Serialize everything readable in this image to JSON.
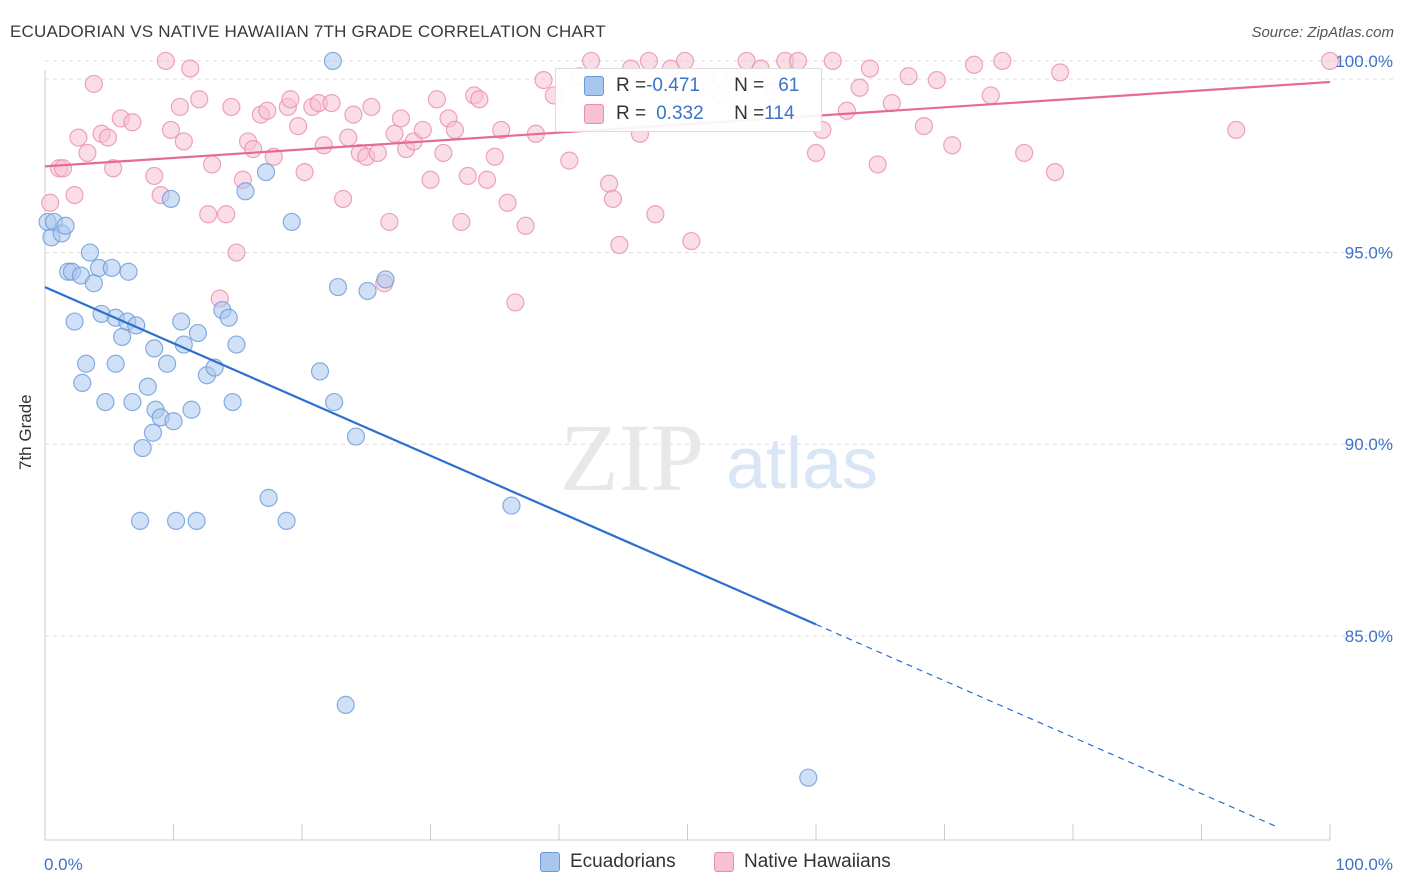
{
  "title": "ECUADORIAN VS NATIVE HAWAIIAN 7TH GRADE CORRELATION CHART",
  "source": "Source: ZipAtlas.com",
  "watermark": {
    "zip": "ZIP",
    "atlas": "atlas"
  },
  "colors": {
    "blue_fill": "#a9c6ee",
    "blue_stroke": "#6b9bd8",
    "blue_line": "#2b6fd0",
    "pink_fill": "#f6c1d2",
    "pink_stroke": "#e98fae",
    "pink_line": "#e56b94",
    "grid": "#dcdcdc",
    "tick_label": "#3b73c8"
  },
  "stats_legend": {
    "rows": [
      {
        "r_label": "R = ",
        "r_value": "-0.471",
        "n_label": "N = ",
        "n_value": "61"
      },
      {
        "r_label": "R = ",
        "r_value": "0.332",
        "n_label": "N = ",
        "n_value": "114"
      }
    ]
  },
  "legend": {
    "ecuadorians": "Ecuadorians",
    "native_hawaiians": "Native Hawaiians"
  },
  "chart_data": {
    "type": "scatter",
    "title": "ECUADORIAN VS NATIVE HAWAIIAN 7TH GRADE CORRELATION CHART",
    "xlabel": "",
    "ylabel": "7th Grade",
    "xlim": [
      0,
      100
    ],
    "ylim": [
      79.5,
      100.8
    ],
    "x_tick_labels": [
      "0.0%",
      "100.0%"
    ],
    "y_ticks": [
      85,
      90,
      95,
      100
    ],
    "y_tick_labels": [
      "85.0%",
      "90.0%",
      "95.0%",
      "100.0%"
    ],
    "grid": true,
    "legend_position": "bottom",
    "series": [
      {
        "name": "Ecuadorians",
        "color": "#a9c6ee",
        "trend": {
          "x0": 0,
          "y0": 94.1,
          "x1": 60,
          "y1": 85.3,
          "dashed_to_x": 96,
          "dashed_to_y": 80.0
        },
        "points": [
          [
            0.2,
            95.8
          ],
          [
            0.5,
            95.4
          ],
          [
            0.7,
            95.8
          ],
          [
            1.3,
            95.5
          ],
          [
            1.6,
            95.7
          ],
          [
            3.5,
            95.0
          ],
          [
            1.8,
            94.5
          ],
          [
            2.1,
            94.5
          ],
          [
            2.8,
            94.4
          ],
          [
            3.8,
            94.2
          ],
          [
            4.2,
            94.6
          ],
          [
            5.2,
            94.6
          ],
          [
            6.5,
            94.5
          ],
          [
            9.8,
            96.4
          ],
          [
            15.6,
            96.6
          ],
          [
            17.2,
            97.1
          ],
          [
            19.2,
            95.8
          ],
          [
            22.4,
            100.0
          ],
          [
            22.8,
            94.1
          ],
          [
            25.1,
            94.0
          ],
          [
            26.5,
            94.3
          ],
          [
            2.3,
            93.2
          ],
          [
            4.4,
            93.4
          ],
          [
            5.5,
            93.3
          ],
          [
            6.0,
            92.8
          ],
          [
            6.4,
            93.2
          ],
          [
            7.1,
            93.1
          ],
          [
            8.5,
            92.5
          ],
          [
            10.6,
            93.2
          ],
          [
            10.8,
            92.6
          ],
          [
            11.9,
            92.9
          ],
          [
            13.8,
            93.5
          ],
          [
            14.3,
            93.3
          ],
          [
            14.9,
            92.6
          ],
          [
            2.9,
            91.6
          ],
          [
            3.2,
            92.1
          ],
          [
            5.5,
            92.1
          ],
          [
            9.5,
            92.1
          ],
          [
            8.0,
            91.5
          ],
          [
            12.6,
            91.8
          ],
          [
            13.2,
            92.0
          ],
          [
            21.4,
            91.9
          ],
          [
            4.7,
            91.1
          ],
          [
            6.8,
            91.1
          ],
          [
            8.6,
            90.9
          ],
          [
            9.0,
            90.7
          ],
          [
            10.0,
            90.6
          ],
          [
            11.4,
            90.9
          ],
          [
            14.6,
            91.1
          ],
          [
            22.5,
            91.1
          ],
          [
            8.4,
            90.3
          ],
          [
            7.6,
            89.9
          ],
          [
            24.2,
            90.2
          ],
          [
            17.4,
            88.6
          ],
          [
            36.3,
            88.4
          ],
          [
            7.4,
            88.0
          ],
          [
            10.2,
            88.0
          ],
          [
            11.8,
            88.0
          ],
          [
            18.8,
            88.0
          ],
          [
            23.4,
            83.2
          ],
          [
            59.4,
            81.3
          ]
        ]
      },
      {
        "name": "Native Hawaiians",
        "color": "#f6c1d2",
        "trend": {
          "x0": 0,
          "y0": 97.25,
          "x1": 100,
          "y1": 99.45
        },
        "points": [
          [
            0.4,
            96.3
          ],
          [
            1.1,
            97.2
          ],
          [
            1.4,
            97.2
          ],
          [
            2.3,
            96.5
          ],
          [
            2.6,
            98.0
          ],
          [
            3.3,
            97.6
          ],
          [
            3.8,
            99.4
          ],
          [
            4.4,
            98.1
          ],
          [
            4.9,
            98.0
          ],
          [
            5.3,
            97.2
          ],
          [
            5.9,
            98.5
          ],
          [
            6.8,
            98.4
          ],
          [
            8.5,
            97.0
          ],
          [
            9.0,
            96.5
          ],
          [
            9.4,
            100.0
          ],
          [
            9.8,
            98.2
          ],
          [
            10.5,
            98.8
          ],
          [
            10.8,
            97.9
          ],
          [
            11.3,
            99.8
          ],
          [
            12.0,
            99.0
          ],
          [
            12.7,
            96.0
          ],
          [
            13.0,
            97.3
          ],
          [
            13.6,
            93.8
          ],
          [
            14.1,
            96.0
          ],
          [
            14.5,
            98.8
          ],
          [
            14.9,
            95.0
          ],
          [
            15.4,
            96.9
          ],
          [
            15.8,
            97.9
          ],
          [
            16.2,
            97.7
          ],
          [
            16.8,
            98.6
          ],
          [
            17.3,
            98.7
          ],
          [
            17.8,
            97.5
          ],
          [
            18.9,
            98.8
          ],
          [
            19.1,
            99.0
          ],
          [
            19.7,
            98.3
          ],
          [
            20.2,
            97.1
          ],
          [
            20.8,
            98.8
          ],
          [
            21.3,
            98.9
          ],
          [
            21.7,
            97.8
          ],
          [
            22.3,
            98.9
          ],
          [
            23.2,
            96.4
          ],
          [
            23.6,
            98.0
          ],
          [
            24.0,
            98.6
          ],
          [
            24.5,
            97.6
          ],
          [
            25.0,
            97.5
          ],
          [
            25.4,
            98.8
          ],
          [
            25.9,
            97.6
          ],
          [
            26.4,
            94.2
          ],
          [
            26.8,
            95.8
          ],
          [
            27.2,
            98.1
          ],
          [
            27.7,
            98.5
          ],
          [
            28.1,
            97.7
          ],
          [
            28.7,
            97.9
          ],
          [
            29.4,
            98.2
          ],
          [
            30.0,
            96.9
          ],
          [
            30.5,
            99.0
          ],
          [
            31.0,
            97.6
          ],
          [
            31.4,
            98.5
          ],
          [
            31.9,
            98.2
          ],
          [
            32.4,
            95.8
          ],
          [
            32.9,
            97.0
          ],
          [
            33.4,
            99.1
          ],
          [
            33.8,
            99.0
          ],
          [
            34.4,
            96.9
          ],
          [
            35.0,
            97.5
          ],
          [
            35.5,
            98.2
          ],
          [
            36.0,
            96.3
          ],
          [
            36.6,
            93.7
          ],
          [
            37.4,
            95.7
          ],
          [
            38.2,
            98.1
          ],
          [
            38.8,
            99.5
          ],
          [
            39.6,
            99.1
          ],
          [
            40.8,
            97.4
          ],
          [
            41.6,
            99.6
          ],
          [
            42.5,
            100.0
          ],
          [
            43.2,
            98.7
          ],
          [
            43.9,
            96.8
          ],
          [
            44.2,
            96.4
          ],
          [
            44.7,
            95.2
          ],
          [
            45.6,
            99.8
          ],
          [
            46.3,
            98.1
          ],
          [
            47.0,
            100.0
          ],
          [
            47.5,
            96.0
          ],
          [
            48.7,
            99.8
          ],
          [
            49.8,
            100.0
          ],
          [
            50.3,
            95.3
          ],
          [
            51.4,
            99.5
          ],
          [
            52.6,
            99.1
          ],
          [
            53.6,
            99.5
          ],
          [
            54.6,
            100.0
          ],
          [
            55.7,
            99.8
          ],
          [
            56.7,
            99.2
          ],
          [
            57.6,
            100.0
          ],
          [
            58.6,
            100.0
          ],
          [
            60.0,
            97.6
          ],
          [
            60.5,
            98.2
          ],
          [
            61.3,
            100.0
          ],
          [
            62.4,
            98.7
          ],
          [
            63.4,
            99.3
          ],
          [
            64.2,
            99.8
          ],
          [
            64.8,
            97.3
          ],
          [
            65.9,
            98.9
          ],
          [
            67.2,
            99.6
          ],
          [
            68.4,
            98.3
          ],
          [
            69.4,
            99.5
          ],
          [
            70.6,
            97.8
          ],
          [
            72.3,
            99.9
          ],
          [
            73.6,
            99.1
          ],
          [
            74.5,
            100.0
          ],
          [
            76.2,
            97.6
          ],
          [
            78.6,
            97.1
          ],
          [
            79.0,
            99.7
          ],
          [
            92.7,
            98.2
          ],
          [
            100.0,
            100.0
          ]
        ]
      }
    ]
  }
}
